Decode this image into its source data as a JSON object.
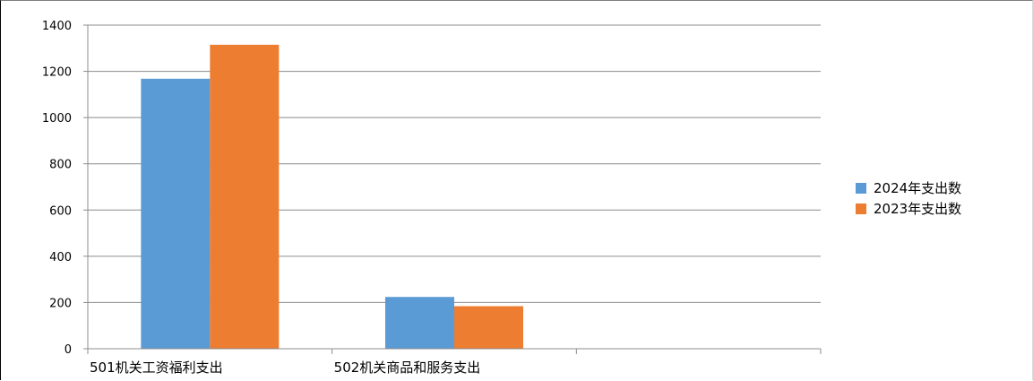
{
  "chart_data": {
    "type": "bar",
    "categories": [
      "501机关工资福利支出",
      "502机关商品和服务支出"
    ],
    "series": [
      {
        "name": "2024年支出数",
        "values": [
          1168,
          224
        ],
        "color": "#5B9BD5"
      },
      {
        "name": "2023年支出数",
        "values": [
          1315,
          184
        ],
        "color": "#ED7D31"
      }
    ],
    "ylim": [
      0,
      1400
    ],
    "yticks": [
      "0",
      "200",
      "400",
      "600",
      "800",
      "1000",
      "1200",
      "1400"
    ],
    "grid": true,
    "legend": "right",
    "title": "",
    "xlabel": "",
    "ylabel": ""
  }
}
